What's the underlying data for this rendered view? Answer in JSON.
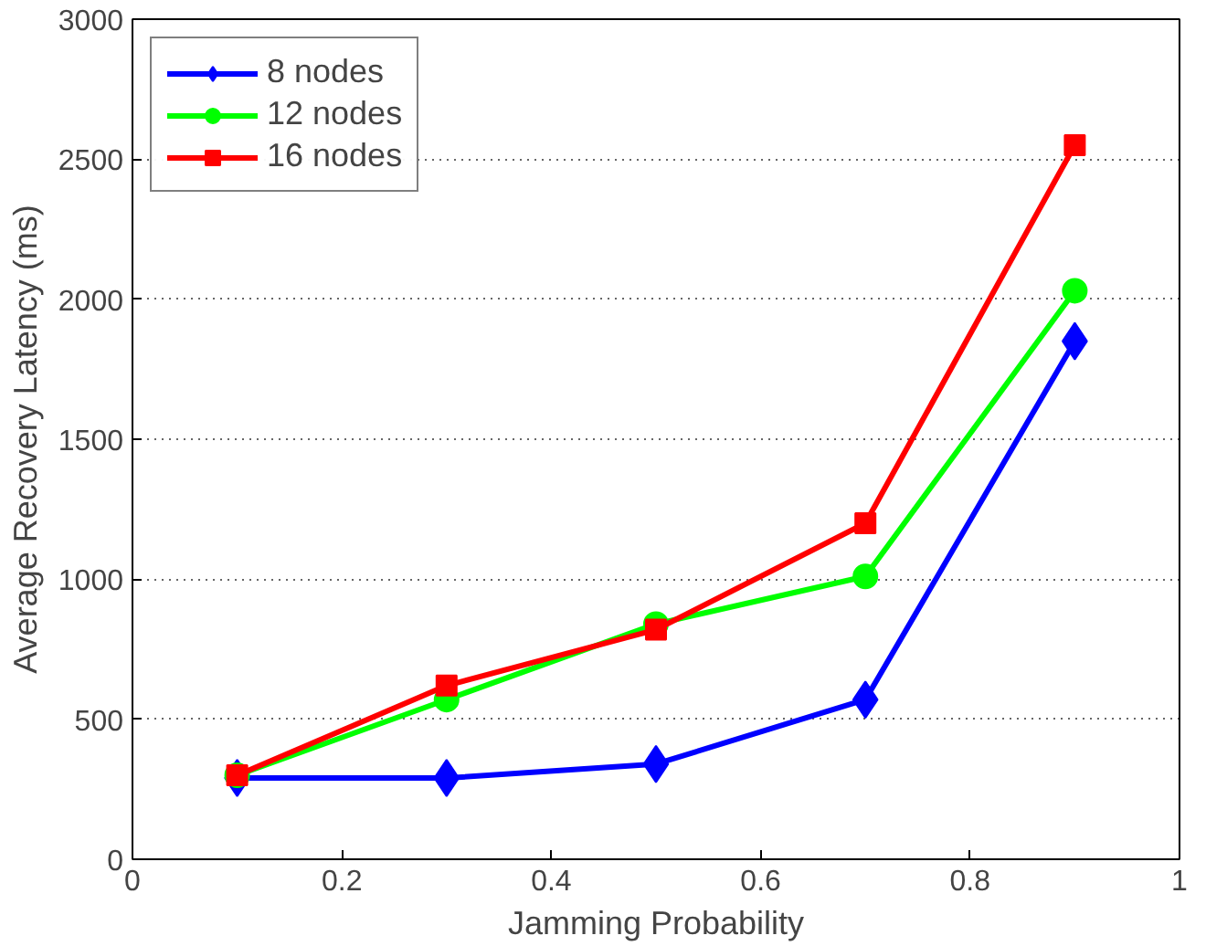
{
  "chart_data": {
    "type": "line",
    "xlabel": "Jamming Probability",
    "ylabel": "Average Recovery Latency (ms)",
    "x": [
      0.1,
      0.3,
      0.5,
      0.7,
      0.9
    ],
    "series": [
      {
        "name": "8 nodes",
        "color": "#0000ff",
        "marker": "diamond",
        "values": [
          290,
          290,
          340,
          570,
          1850
        ]
      },
      {
        "name": "12 nodes",
        "color": "#00ff00",
        "marker": "circle",
        "values": [
          300,
          570,
          840,
          1010,
          2030
        ]
      },
      {
        "name": "16 nodes",
        "color": "#ff0000",
        "marker": "square",
        "values": [
          300,
          620,
          820,
          1200,
          2550
        ]
      }
    ],
    "xlim": [
      0,
      1
    ],
    "ylim": [
      0,
      3000
    ],
    "xticks": [
      0,
      0.2,
      0.4,
      0.6,
      0.8,
      1
    ],
    "yticks": [
      0,
      500,
      1000,
      1500,
      2000,
      2500,
      3000
    ],
    "grid": "y",
    "legend": "top left",
    "line_style": "solid"
  }
}
